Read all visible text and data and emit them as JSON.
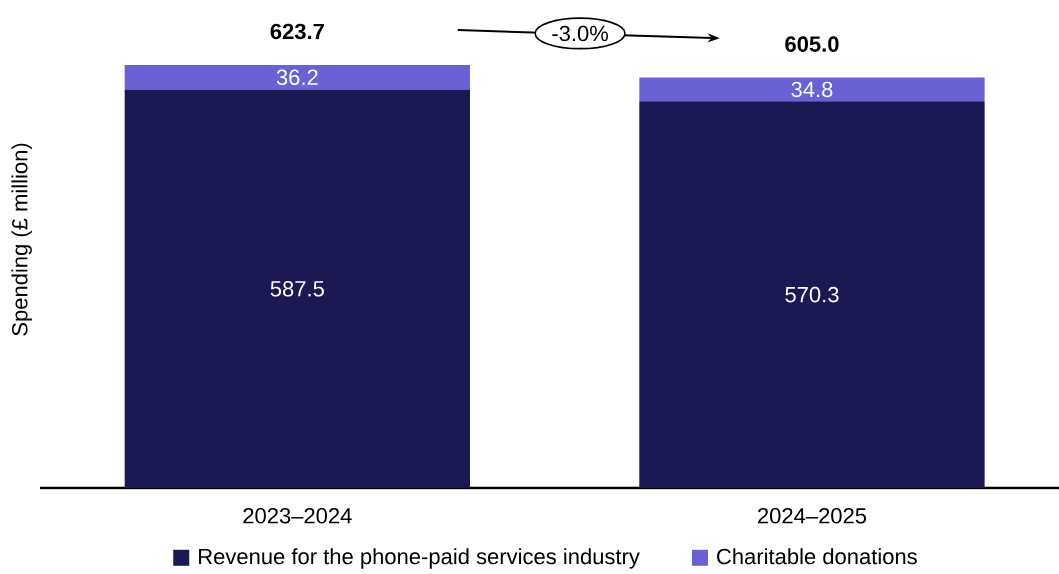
{
  "chart_data": {
    "type": "bar",
    "stacked": true,
    "ylabel": "Spending (£ million)",
    "categories": [
      "2023–2024",
      "2024–2025"
    ],
    "series": [
      {
        "name": "Revenue for the phone-paid services industry",
        "color": "#1b1853",
        "values": [
          587.5,
          570.3
        ]
      },
      {
        "name": "Charitable donations",
        "color": "#6a62d4",
        "values": [
          36.2,
          34.8
        ]
      }
    ],
    "data_labels": true,
    "totals": [
      "623.7",
      "605.0"
    ],
    "annotations": [
      "-3.0%"
    ],
    "legend": "bottom"
  }
}
